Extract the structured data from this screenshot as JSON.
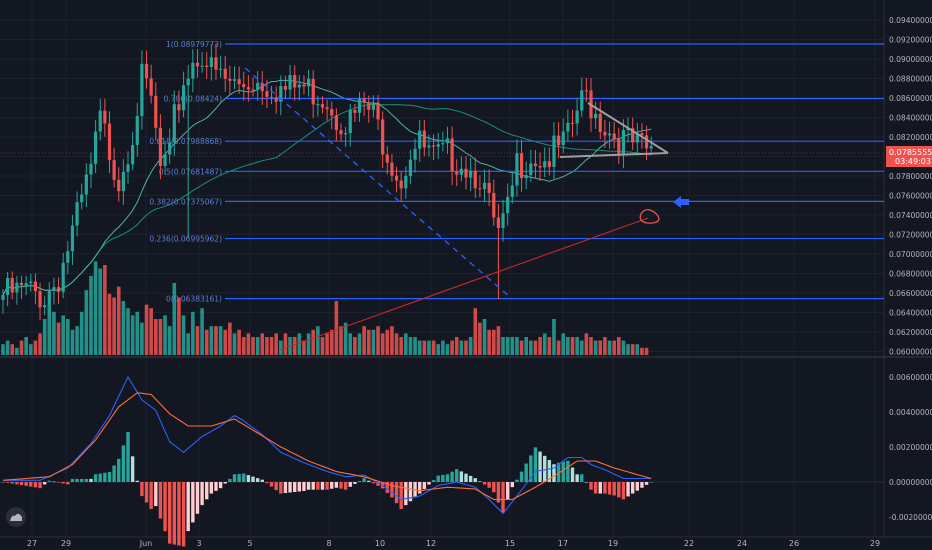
{
  "colors": {
    "background": "#131722",
    "up": "#26a69a",
    "down": "#ef5350",
    "fib_line": "#2962ff",
    "ma_green": "#1b8f7a",
    "ma_teal": "#4fb3a2",
    "macd": "#2962ff",
    "signal": "#ff6d3a",
    "hist_pos_strong": "#26a69a",
    "hist_pos_weak": "#b2dfdb",
    "hist_neg_strong": "#ef5350",
    "hist_neg_weak": "#ffcdd2",
    "axis_text": "#b2b5be",
    "price_tag": "#ef5350",
    "arrow": "#2962ff",
    "annotation_red": "#ef5350",
    "grey_line": "#9e9e9e"
  },
  "price_axis": {
    "labels": [
      "0.09400000",
      "0.09200000",
      "0.09000000",
      "0.08800000",
      "0.08600000",
      "0.08400000",
      "0.08200000",
      "0.08000000",
      "0.07800000",
      "0.07600000",
      "0.07400000",
      "0.07200000",
      "0.07000000",
      "0.06800000",
      "0.06600000",
      "0.06400000",
      "0.06200000",
      "0.06000000"
    ],
    "current_price": "0.07855559",
    "countdown": "03:49:03"
  },
  "macd_axis": {
    "labels": [
      "0.00600000",
      "0.00400000",
      "0.00200000",
      "0.00000000",
      "-0.00200000"
    ]
  },
  "time_axis": {
    "labels": [
      "27",
      "29",
      "Jun",
      "3",
      "5",
      "8",
      "10",
      "12",
      "15",
      "17",
      "19",
      "22",
      "24",
      "26",
      "29"
    ]
  },
  "fib_levels": [
    {
      "label": "1(0.08979773)",
      "price": 0.08979773
    },
    {
      "label": "0.786(0.08424)",
      "price": 0.08424
    },
    {
      "label": "0.618(0.07988868)",
      "price": 0.07988868
    },
    {
      "label": "0.5(0.07681487)",
      "price": 0.07681487
    },
    {
      "label": "0.382(0.07375067)",
      "price": 0.07375067
    },
    {
      "label": "0.236(0.06995962)",
      "price": 0.06995962
    },
    {
      "label": "0(0.06383161)",
      "price": 0.06383161
    }
  ],
  "chart_data": {
    "type": "candlestick",
    "ylim": [
      0.0585,
      0.095
    ],
    "macd_ylim": [
      -0.0025,
      0.007
    ],
    "anchors": [
      [
        0,
        0.0642
      ],
      [
        5,
        0.0646
      ],
      [
        9,
        0.064
      ],
      [
        12,
        0.066
      ],
      [
        16,
        0.072
      ],
      [
        19,
        0.077
      ],
      [
        21,
        0.082
      ],
      [
        23,
        0.079
      ],
      [
        25,
        0.076
      ],
      [
        28,
        0.081
      ],
      [
        30,
        0.086
      ],
      [
        32,
        0.084
      ],
      [
        34,
        0.077
      ],
      [
        36,
        0.078
      ],
      [
        37,
        0.082
      ],
      [
        39,
        0.086
      ],
      [
        41,
        0.088
      ],
      [
        43,
        0.089
      ],
      [
        45,
        0.087
      ],
      [
        48,
        0.086
      ],
      [
        51,
        0.0855
      ],
      [
        54,
        0.0862
      ],
      [
        57,
        0.0858
      ],
      [
        61,
        0.085
      ],
      [
        64,
        0.0855
      ],
      [
        67,
        0.085
      ],
      [
        70,
        0.0843
      ],
      [
        72,
        0.0825
      ],
      [
        75,
        0.082
      ],
      [
        78,
        0.0835
      ],
      [
        80,
        0.0825
      ],
      [
        83,
        0.079
      ],
      [
        86,
        0.076
      ],
      [
        88,
        0.079
      ],
      [
        90,
        0.0795
      ],
      [
        93,
        0.078
      ],
      [
        96,
        0.0785
      ],
      [
        99,
        0.078
      ],
      [
        101,
        0.077
      ],
      [
        103,
        0.0765
      ],
      [
        105,
        0.073
      ],
      [
        107,
        0.07
      ],
      [
        109,
        0.0725
      ],
      [
        111,
        0.0775
      ],
      [
        114,
        0.0785
      ],
      [
        117,
        0.078
      ],
      [
        120,
        0.079
      ],
      [
        122,
        0.08
      ],
      [
        124,
        0.083
      ],
      [
        126,
        0.0845
      ],
      [
        128,
        0.0828
      ],
      [
        130,
        0.0815
      ],
      [
        132,
        0.0805
      ],
      [
        134,
        0.08
      ],
      [
        136,
        0.0795
      ],
      [
        138,
        0.079
      ],
      [
        140,
        0.0786
      ]
    ],
    "volumes": [
      3,
      4,
      3,
      2,
      4,
      5,
      3,
      4,
      6,
      10,
      14,
      12,
      9,
      11,
      10,
      7,
      8,
      12,
      18,
      22,
      26,
      24,
      25,
      17,
      16,
      19,
      15,
      13,
      11,
      12,
      9,
      14,
      13,
      10,
      10,
      11,
      8,
      20,
      16,
      11,
      6,
      12,
      8,
      13,
      7,
      8,
      8,
      8,
      7,
      9,
      6,
      7,
      5,
      6,
      5,
      5,
      6,
      5,
      5,
      6,
      4,
      6,
      5,
      5,
      6,
      4,
      6,
      7,
      8,
      5,
      6,
      7,
      15,
      8,
      9,
      6,
      5,
      6,
      8,
      7,
      7,
      8,
      6,
      7,
      8,
      6,
      5,
      6,
      5,
      5,
      4,
      4,
      4,
      4,
      3,
      4,
      3,
      4,
      5,
      4,
      4,
      5,
      13,
      9,
      10,
      7,
      7,
      8,
      5,
      5,
      5,
      5,
      4,
      5,
      4,
      4,
      5,
      6,
      5,
      10,
      4,
      6,
      5,
      5,
      5,
      4,
      6,
      5,
      4,
      4,
      5,
      4,
      4,
      5,
      4,
      3,
      3,
      3,
      2,
      2
    ],
    "macd_anchors": [
      [
        0,
        0.0001
      ],
      [
        8,
        0.0001
      ],
      [
        14,
        0.0008
      ],
      [
        19,
        0.0022
      ],
      [
        23,
        0.0038
      ],
      [
        27,
        0.006
      ],
      [
        30,
        0.0047
      ],
      [
        33,
        0.0041
      ],
      [
        36,
        0.0023
      ],
      [
        39,
        0.0017
      ],
      [
        43,
        0.0026
      ],
      [
        47,
        0.0032
      ],
      [
        50,
        0.0038
      ],
      [
        52,
        0.0035
      ],
      [
        56,
        0.0027
      ],
      [
        60,
        0.0017
      ],
      [
        65,
        0.0011
      ],
      [
        70,
        0.0006
      ],
      [
        74,
        0.0003
      ],
      [
        78,
        0.0004
      ],
      [
        82,
        -0.0002
      ],
      [
        86,
        -0.001
      ],
      [
        90,
        -0.0008
      ],
      [
        94,
        -0.0002
      ],
      [
        98,
        0.0
      ],
      [
        102,
        -0.0003
      ],
      [
        105,
        -0.001
      ],
      [
        108,
        -0.0018
      ],
      [
        111,
        -0.0008
      ],
      [
        115,
        0.0006
      ],
      [
        119,
        0.0008
      ],
      [
        122,
        0.0014
      ],
      [
        125,
        0.0014
      ],
      [
        127,
        0.001
      ],
      [
        130,
        0.0007
      ],
      [
        134,
        0.0002
      ],
      [
        140,
        0.0002
      ]
    ],
    "signal_anchors": [
      [
        0,
        0.0001
      ],
      [
        10,
        0.0003
      ],
      [
        15,
        0.001
      ],
      [
        20,
        0.0024
      ],
      [
        25,
        0.0043
      ],
      [
        29,
        0.0051
      ],
      [
        32,
        0.005
      ],
      [
        36,
        0.0039
      ],
      [
        40,
        0.0032
      ],
      [
        45,
        0.0032
      ],
      [
        50,
        0.0036
      ],
      [
        55,
        0.0028
      ],
      [
        60,
        0.002
      ],
      [
        66,
        0.0012
      ],
      [
        72,
        0.0006
      ],
      [
        78,
        0.0003
      ],
      [
        84,
        -0.0002
      ],
      [
        90,
        -0.0005
      ],
      [
        96,
        -0.0003
      ],
      [
        102,
        -0.0004
      ],
      [
        106,
        -0.001
      ],
      [
        110,
        -0.001
      ],
      [
        115,
        -0.0003
      ],
      [
        120,
        0.0005
      ],
      [
        124,
        0.0012
      ],
      [
        128,
        0.0012
      ],
      [
        132,
        0.0008
      ],
      [
        136,
        0.0005
      ],
      [
        140,
        0.0002
      ]
    ]
  }
}
